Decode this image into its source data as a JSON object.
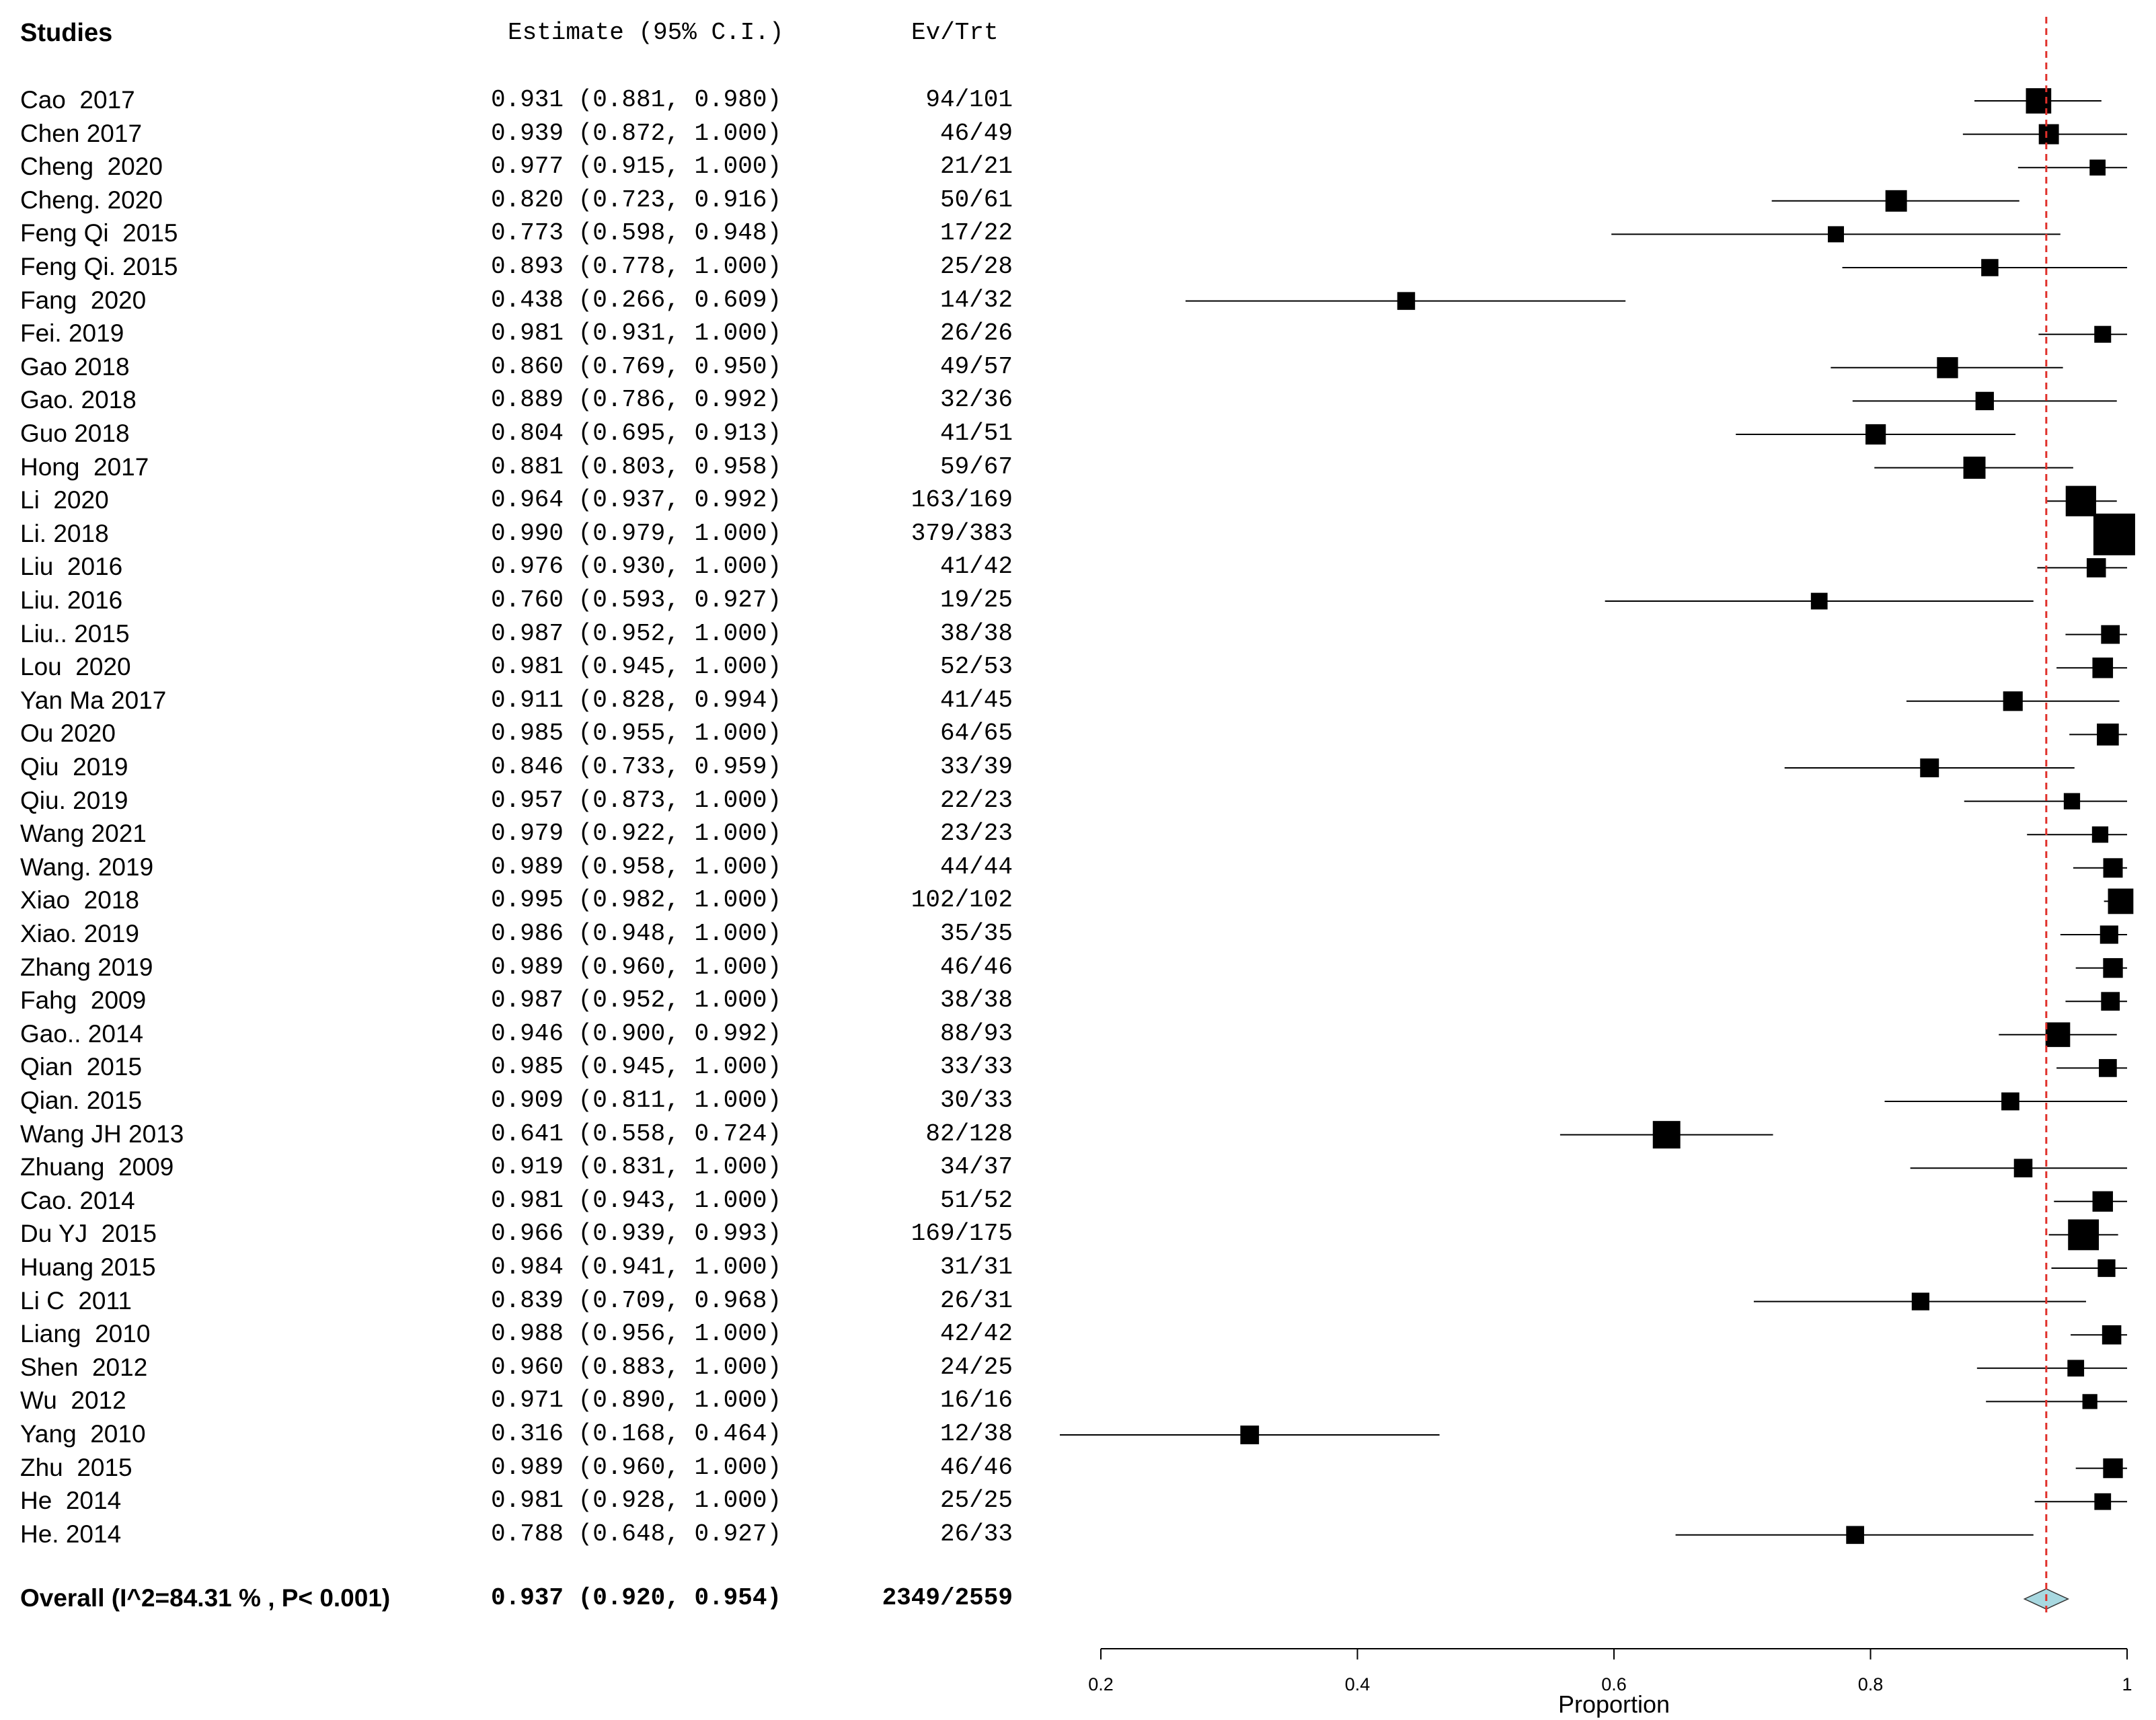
{
  "headers": {
    "studies": "Studies",
    "estimate": "Estimate (95% C.I.)",
    "evtrt": "Ev/Trt"
  },
  "chart_data": {
    "type": "forest",
    "xlabel": "Proportion",
    "xlim": [
      0.2,
      1.0
    ],
    "xticks": [
      "0.2",
      "0.4",
      "0.6",
      "0.8",
      "1"
    ],
    "reference_line": 0.937,
    "reference_line_color": "#e0302a",
    "diamond_color": "#a8d8e0",
    "studies": [
      {
        "name": "Cao  2017",
        "est": 0.931,
        "lo": 0.881,
        "hi": 0.98,
        "est_text": "0.931 (0.881, 0.980)",
        "evtrt": "94/101",
        "n": 101
      },
      {
        "name": "Chen 2017",
        "est": 0.939,
        "lo": 0.872,
        "hi": 1.0,
        "est_text": "0.939 (0.872, 1.000)",
        "evtrt": "46/49",
        "n": 49
      },
      {
        "name": "Cheng  2020",
        "est": 0.977,
        "lo": 0.915,
        "hi": 1.0,
        "est_text": "0.977 (0.915, 1.000)",
        "evtrt": "21/21",
        "n": 21
      },
      {
        "name": "Cheng. 2020",
        "est": 0.82,
        "lo": 0.723,
        "hi": 0.916,
        "est_text": "0.820 (0.723, 0.916)",
        "evtrt": "50/61",
        "n": 61
      },
      {
        "name": "Feng Qi  2015",
        "est": 0.773,
        "lo": 0.598,
        "hi": 0.948,
        "est_text": "0.773 (0.598, 0.948)",
        "evtrt": "17/22",
        "n": 22
      },
      {
        "name": "Feng Qi. 2015",
        "est": 0.893,
        "lo": 0.778,
        "hi": 1.0,
        "est_text": "0.893 (0.778, 1.000)",
        "evtrt": "25/28",
        "n": 28
      },
      {
        "name": "Fang  2020",
        "est": 0.438,
        "lo": 0.266,
        "hi": 0.609,
        "est_text": "0.438 (0.266, 0.609)",
        "evtrt": "14/32",
        "n": 32
      },
      {
        "name": "Fei. 2019",
        "est": 0.981,
        "lo": 0.931,
        "hi": 1.0,
        "est_text": "0.981 (0.931, 1.000)",
        "evtrt": "26/26",
        "n": 26
      },
      {
        "name": "Gao 2018",
        "est": 0.86,
        "lo": 0.769,
        "hi": 0.95,
        "est_text": "0.860 (0.769, 0.950)",
        "evtrt": "49/57",
        "n": 57
      },
      {
        "name": "Gao. 2018",
        "est": 0.889,
        "lo": 0.786,
        "hi": 0.992,
        "est_text": "0.889 (0.786, 0.992)",
        "evtrt": "32/36",
        "n": 36
      },
      {
        "name": "Guo 2018",
        "est": 0.804,
        "lo": 0.695,
        "hi": 0.913,
        "est_text": "0.804 (0.695, 0.913)",
        "evtrt": "41/51",
        "n": 51
      },
      {
        "name": "Hong  2017",
        "est": 0.881,
        "lo": 0.803,
        "hi": 0.958,
        "est_text": "0.881 (0.803, 0.958)",
        "evtrt": "59/67",
        "n": 67
      },
      {
        "name": "Li  2020",
        "est": 0.964,
        "lo": 0.937,
        "hi": 0.992,
        "est_text": "0.964 (0.937, 0.992)",
        "evtrt": "163/169",
        "n": 169
      },
      {
        "name": "Li. 2018",
        "est": 0.99,
        "lo": 0.979,
        "hi": 1.0,
        "est_text": "0.990 (0.979, 1.000)",
        "evtrt": "379/383",
        "n": 383
      },
      {
        "name": "Liu  2016",
        "est": 0.976,
        "lo": 0.93,
        "hi": 1.0,
        "est_text": "0.976 (0.930, 1.000)",
        "evtrt": "41/42",
        "n": 42
      },
      {
        "name": "Liu. 2016",
        "est": 0.76,
        "lo": 0.593,
        "hi": 0.927,
        "est_text": "0.760 (0.593, 0.927)",
        "evtrt": "19/25",
        "n": 25
      },
      {
        "name": "Liu.. 2015",
        "est": 0.987,
        "lo": 0.952,
        "hi": 1.0,
        "est_text": "0.987 (0.952, 1.000)",
        "evtrt": "38/38",
        "n": 38
      },
      {
        "name": "Lou  2020",
        "est": 0.981,
        "lo": 0.945,
        "hi": 1.0,
        "est_text": "0.981 (0.945, 1.000)",
        "evtrt": "52/53",
        "n": 53
      },
      {
        "name": "Yan Ma 2017",
        "est": 0.911,
        "lo": 0.828,
        "hi": 0.994,
        "est_text": "0.911 (0.828, 0.994)",
        "evtrt": "41/45",
        "n": 45
      },
      {
        "name": "Ou 2020",
        "est": 0.985,
        "lo": 0.955,
        "hi": 1.0,
        "est_text": "0.985 (0.955, 1.000)",
        "evtrt": "64/65",
        "n": 65
      },
      {
        "name": "Qiu  2019",
        "est": 0.846,
        "lo": 0.733,
        "hi": 0.959,
        "est_text": "0.846 (0.733, 0.959)",
        "evtrt": "33/39",
        "n": 39
      },
      {
        "name": "Qiu. 2019",
        "est": 0.957,
        "lo": 0.873,
        "hi": 1.0,
        "est_text": "0.957 (0.873, 1.000)",
        "evtrt": "22/23",
        "n": 23
      },
      {
        "name": "Wang 2021",
        "est": 0.979,
        "lo": 0.922,
        "hi": 1.0,
        "est_text": "0.979 (0.922, 1.000)",
        "evtrt": "23/23",
        "n": 23
      },
      {
        "name": "Wang. 2019",
        "est": 0.989,
        "lo": 0.958,
        "hi": 1.0,
        "est_text": "0.989 (0.958, 1.000)",
        "evtrt": "44/44",
        "n": 44
      },
      {
        "name": "Xiao  2018",
        "est": 0.995,
        "lo": 0.982,
        "hi": 1.0,
        "est_text": "0.995 (0.982, 1.000)",
        "evtrt": "102/102",
        "n": 102
      },
      {
        "name": "Xiao. 2019",
        "est": 0.986,
        "lo": 0.948,
        "hi": 1.0,
        "est_text": "0.986 (0.948, 1.000)",
        "evtrt": "35/35",
        "n": 35
      },
      {
        "name": "Zhang 2019",
        "est": 0.989,
        "lo": 0.96,
        "hi": 1.0,
        "est_text": "0.989 (0.960, 1.000)",
        "evtrt": "46/46",
        "n": 46
      },
      {
        "name": "Fahg  2009",
        "est": 0.987,
        "lo": 0.952,
        "hi": 1.0,
        "est_text": "0.987 (0.952, 1.000)",
        "evtrt": "38/38",
        "n": 38
      },
      {
        "name": "Gao.. 2014",
        "est": 0.946,
        "lo": 0.9,
        "hi": 0.992,
        "est_text": "0.946 (0.900, 0.992)",
        "evtrt": "88/93",
        "n": 93
      },
      {
        "name": "Qian  2015",
        "est": 0.985,
        "lo": 0.945,
        "hi": 1.0,
        "est_text": "0.985 (0.945, 1.000)",
        "evtrt": "33/33",
        "n": 33
      },
      {
        "name": "Qian. 2015",
        "est": 0.909,
        "lo": 0.811,
        "hi": 1.0,
        "est_text": "0.909 (0.811, 1.000)",
        "evtrt": "30/33",
        "n": 33
      },
      {
        "name": "Wang JH 2013",
        "est": 0.641,
        "lo": 0.558,
        "hi": 0.724,
        "est_text": "0.641 (0.558, 0.724)",
        "evtrt": "82/128",
        "n": 128
      },
      {
        "name": "Zhuang  2009",
        "est": 0.919,
        "lo": 0.831,
        "hi": 1.0,
        "est_text": "0.919 (0.831, 1.000)",
        "evtrt": "34/37",
        "n": 37
      },
      {
        "name": "Cao. 2014",
        "est": 0.981,
        "lo": 0.943,
        "hi": 1.0,
        "est_text": "0.981 (0.943, 1.000)",
        "evtrt": "51/52",
        "n": 52
      },
      {
        "name": "Du YJ  2015",
        "est": 0.966,
        "lo": 0.939,
        "hi": 0.993,
        "est_text": "0.966 (0.939, 0.993)",
        "evtrt": "169/175",
        "n": 175
      },
      {
        "name": "Huang 2015",
        "est": 0.984,
        "lo": 0.941,
        "hi": 1.0,
        "est_text": "0.984 (0.941, 1.000)",
        "evtrt": "31/31",
        "n": 31
      },
      {
        "name": "Li C  2011",
        "est": 0.839,
        "lo": 0.709,
        "hi": 0.968,
        "est_text": "0.839 (0.709, 0.968)",
        "evtrt": "26/31",
        "n": 31
      },
      {
        "name": "Liang  2010",
        "est": 0.988,
        "lo": 0.956,
        "hi": 1.0,
        "est_text": "0.988 (0.956, 1.000)",
        "evtrt": "42/42",
        "n": 42
      },
      {
        "name": "Shen  2012",
        "est": 0.96,
        "lo": 0.883,
        "hi": 1.0,
        "est_text": "0.960 (0.883, 1.000)",
        "evtrt": "24/25",
        "n": 25
      },
      {
        "name": "Wu  2012",
        "est": 0.971,
        "lo": 0.89,
        "hi": 1.0,
        "est_text": "0.971 (0.890, 1.000)",
        "evtrt": "16/16",
        "n": 16
      },
      {
        "name": "Yang  2010",
        "est": 0.316,
        "lo": 0.168,
        "hi": 0.464,
        "est_text": "0.316 (0.168, 0.464)",
        "evtrt": "12/38",
        "n": 38
      },
      {
        "name": "Zhu  2015",
        "est": 0.989,
        "lo": 0.96,
        "hi": 1.0,
        "est_text": "0.989 (0.960, 1.000)",
        "evtrt": "46/46",
        "n": 46
      },
      {
        "name": "He  2014",
        "est": 0.981,
        "lo": 0.928,
        "hi": 1.0,
        "est_text": "0.981 (0.928, 1.000)",
        "evtrt": "25/25",
        "n": 25
      },
      {
        "name": "He. 2014",
        "est": 0.788,
        "lo": 0.648,
        "hi": 0.927,
        "est_text": "0.788 (0.648, 0.927)",
        "evtrt": "26/33",
        "n": 33
      }
    ],
    "overall": {
      "label": "Overall (I^2=84.31 % , P< 0.001)",
      "est": 0.937,
      "lo": 0.92,
      "hi": 0.954,
      "est_text": "0.937 (0.920, 0.954)",
      "evtrt": "2349/2559"
    }
  }
}
